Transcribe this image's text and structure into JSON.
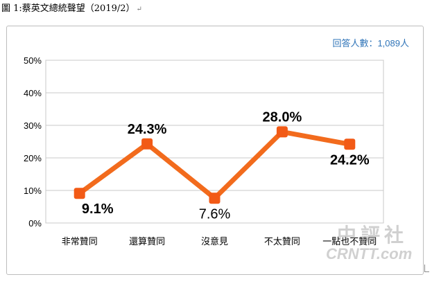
{
  "caption": {
    "text": "圖 1:蔡英文總統聲望（2019/2）",
    "mark": "↵"
  },
  "respondents_label": "回答人數：1,089人",
  "watermark": {
    "cn": "中評社",
    "en": "CRNTT.com"
  },
  "colors": {
    "line": "#f26b1d",
    "marker": "#f25a16",
    "gridline": "#c8c8c8",
    "respondents_text": "#2f74b8"
  },
  "chart_data": {
    "type": "line",
    "title": "",
    "xlabel": "",
    "ylabel": "",
    "categories": [
      "非常贊同",
      "還算贊同",
      "沒意見",
      "不太贊同",
      "一點也不贊同"
    ],
    "series": [
      {
        "values": [
          9.1,
          24.3,
          7.6,
          28.0,
          24.2
        ]
      }
    ],
    "data_labels": [
      "9.1%",
      "24.3%",
      "7.6%",
      "28.0%",
      "24.2%"
    ],
    "ylim": [
      0,
      50
    ],
    "yticks": [
      "0%",
      "10%",
      "20%",
      "30%",
      "40%",
      "50%"
    ],
    "grid": true,
    "legend": "none"
  }
}
